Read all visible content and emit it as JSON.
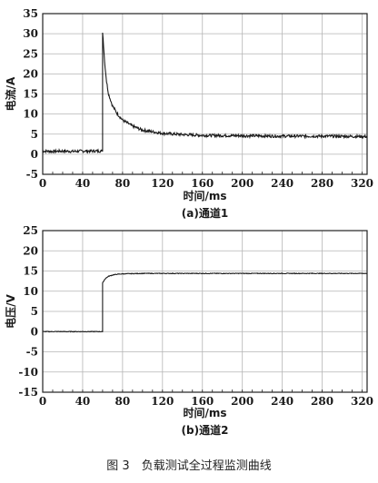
{
  "chart_data": [
    {
      "type": "line",
      "title": "",
      "subtitle": "(a)通道1",
      "xlabel": "时间/ms",
      "ylabel": "电流/A",
      "xlim": [
        0,
        325
      ],
      "ylim": [
        -5,
        35
      ],
      "xticks": [
        0,
        40,
        80,
        120,
        160,
        200,
        240,
        280,
        320
      ],
      "yticks": [
        -5,
        0,
        5,
        10,
        15,
        20,
        25,
        30,
        35
      ],
      "grid": true,
      "series": [
        {
          "color": "#1a1a1a",
          "x": [
            0,
            10,
            20,
            30,
            40,
            50,
            59,
            60,
            61,
            62,
            64,
            66,
            70,
            75,
            80,
            90,
            100,
            120,
            140,
            160,
            200,
            240,
            280,
            325
          ],
          "y": [
            0.8,
            0.7,
            0.8,
            0.7,
            0.8,
            0.8,
            0.8,
            30.5,
            27,
            23,
            18,
            15,
            12,
            10,
            8.5,
            7,
            6,
            5.2,
            4.9,
            4.7,
            4.6,
            4.5,
            4.5,
            4.4
          ]
        }
      ]
    },
    {
      "type": "line",
      "title": "",
      "subtitle": "(b)通道2",
      "xlabel": "时间/ms",
      "ylabel": "电压/V",
      "xlim": [
        0,
        325
      ],
      "ylim": [
        -15,
        25
      ],
      "xticks": [
        0,
        40,
        80,
        120,
        160,
        200,
        240,
        280,
        320
      ],
      "yticks": [
        -15,
        -10,
        -5,
        0,
        5,
        10,
        15,
        20,
        25
      ],
      "grid": true,
      "series": [
        {
          "color": "#1a1a1a",
          "x": [
            0,
            20,
            40,
            59,
            60,
            61,
            63,
            66,
            70,
            75,
            80,
            100,
            160,
            240,
            325
          ],
          "y": [
            0,
            0,
            0,
            0,
            12,
            12.5,
            13.2,
            13.7,
            14.0,
            14.2,
            14.3,
            14.4,
            14.4,
            14.4,
            14.4
          ]
        }
      ]
    }
  ],
  "caption": "图 3　负载测试全过程监测曲线"
}
